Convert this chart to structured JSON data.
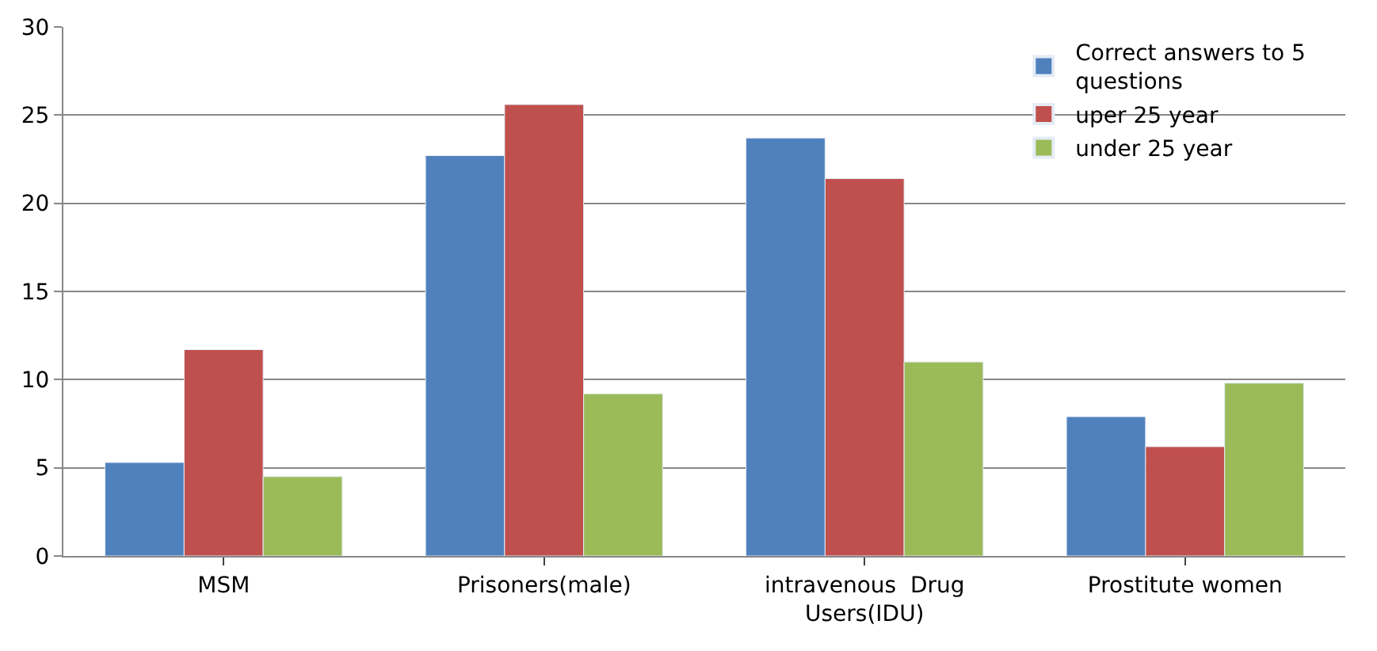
{
  "chart_data": {
    "type": "bar",
    "categories": [
      "MSM",
      "Prisoners(male)",
      "intravenous  Drug Users(IDU)",
      "Prostitute women"
    ],
    "series": [
      {
        "name": "Correct answers to 5 questions",
        "color": "#4f81bd",
        "values": [
          5.3,
          22.7,
          23.7,
          7.9
        ]
      },
      {
        "name": "uper 25 year",
        "color": "#c0504d",
        "values": [
          11.7,
          25.6,
          21.4,
          6.2
        ]
      },
      {
        "name": "under 25 year",
        "color": "#9bbb59",
        "values": [
          4.5,
          9.2,
          11.0,
          9.8
        ]
      }
    ],
    "ylim": [
      0,
      30
    ],
    "yticks": [
      0,
      5,
      10,
      15,
      20,
      25,
      30
    ],
    "grid": "y",
    "legend": "top right"
  }
}
